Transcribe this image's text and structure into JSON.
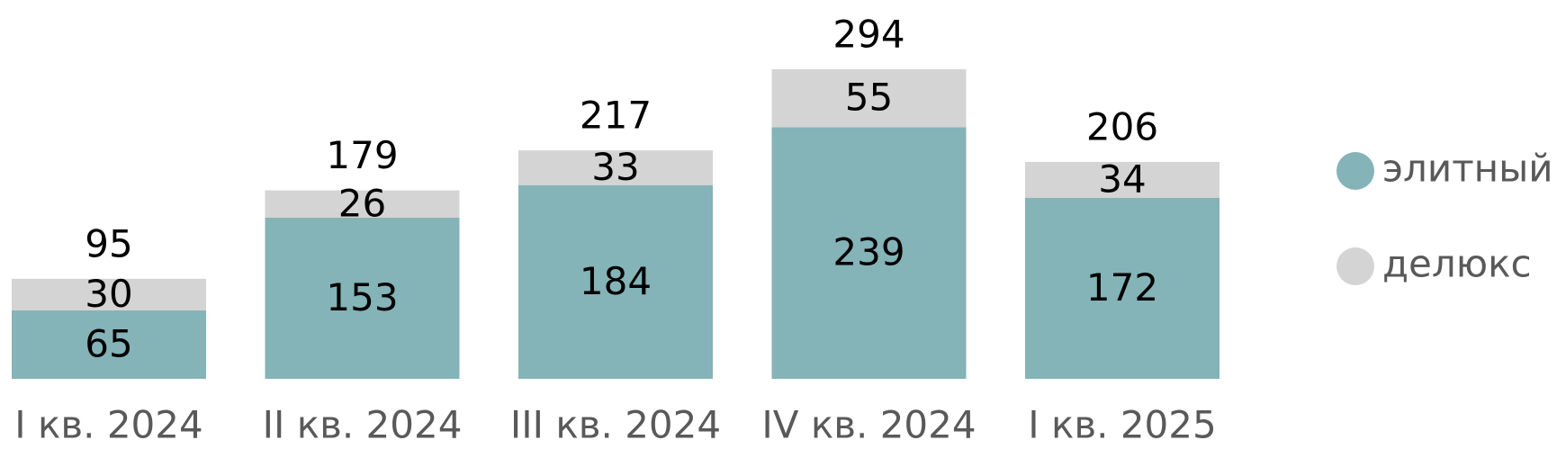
{
  "chart_data": {
    "type": "stacked-bar",
    "categories": [
      "I кв. 2024",
      "II кв. 2024",
      "III кв. 2024",
      "IV кв. 2024",
      "I кв. 2025"
    ],
    "series": [
      {
        "name": "элитный",
        "color": "#84b3b8",
        "values": [
          65,
          153,
          184,
          239,
          172
        ]
      },
      {
        "name": "делюкс",
        "color": "#d4d4d4",
        "values": [
          30,
          26,
          33,
          55,
          34
        ]
      }
    ],
    "totals": [
      95,
      179,
      217,
      294,
      206
    ]
  }
}
